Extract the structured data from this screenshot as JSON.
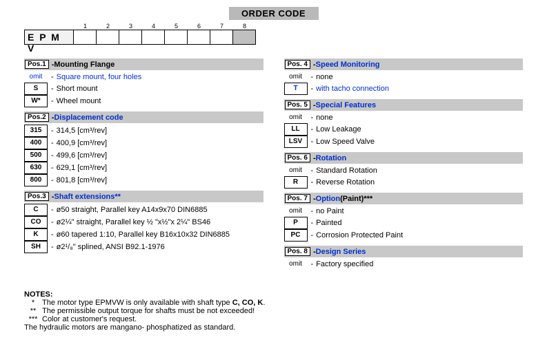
{
  "title": "ORDER CODE",
  "prefix": "E P M V",
  "gridNumbers": [
    "1",
    "2",
    "3",
    "4",
    "5",
    "6",
    "7",
    "8"
  ],
  "left": [
    {
      "pos": "Pos.1",
      "title": "Mounting Flange",
      "titleBlue": false,
      "rows": [
        {
          "code": "omit",
          "boxed": false,
          "omit": true,
          "blue": true,
          "desc": "Square mount, four holes"
        },
        {
          "code": "S",
          "boxed": true,
          "omit": false,
          "blue": false,
          "desc": "Short mount"
        },
        {
          "code": "W*",
          "boxed": true,
          "omit": false,
          "blue": false,
          "desc": "Wheel mount"
        }
      ]
    },
    {
      "pos": "Pos.2",
      "title": "Displacement code",
      "titleBlue": true,
      "rows": [
        {
          "code": "315",
          "boxed": true,
          "omit": false,
          "blue": false,
          "desc": "314,5 [cm³/rev]"
        },
        {
          "code": "400",
          "boxed": true,
          "omit": false,
          "blue": false,
          "desc": "400,9 [cm³/rev]"
        },
        {
          "code": "500",
          "boxed": true,
          "omit": false,
          "blue": false,
          "desc": "499,6 [cm³/rev]"
        },
        {
          "code": "630",
          "boxed": true,
          "omit": false,
          "blue": false,
          "desc": "629,1 [cm³/rev]"
        },
        {
          "code": "800",
          "boxed": true,
          "omit": false,
          "blue": false,
          "desc": "801,8 [cm³/rev]"
        }
      ]
    },
    {
      "pos": "Pos.3",
      "title": "Shaft extensions**",
      "titleBlue": true,
      "rows": [
        {
          "code": "C",
          "boxed": true,
          "omit": false,
          "blue": false,
          "desc": "ø50 straight, Parallel key A14x9x70 DIN6885"
        },
        {
          "code": "CO",
          "boxed": true,
          "omit": false,
          "blue": false,
          "desc": "ø2¼\" straight, Parallel key ½ \"x½\"x 2¼\" BS46"
        },
        {
          "code": "K",
          "boxed": true,
          "omit": false,
          "blue": false,
          "desc": "ø60 tapered 1:10, Parallel key B16x10x32 DIN6885"
        },
        {
          "code": "SH",
          "boxed": true,
          "omit": false,
          "blue": false,
          "desc": "ø2¹/₈\"  splined, ANSI B92.1-1976"
        }
      ]
    }
  ],
  "right": [
    {
      "pos": "Pos. 4",
      "title": "Speed Monitoring",
      "titleBlue": true,
      "rows": [
        {
          "code": "omit",
          "boxed": false,
          "omit": true,
          "blue": false,
          "desc": "none"
        },
        {
          "code": "T",
          "boxed": true,
          "omit": false,
          "blue": true,
          "desc": "with tacho connection"
        }
      ]
    },
    {
      "pos": "Pos. 5",
      "title": "Special Features",
      "titleBlue": true,
      "rows": [
        {
          "code": "omit",
          "boxed": false,
          "omit": true,
          "blue": false,
          "desc": "none"
        },
        {
          "code": "LL",
          "boxed": true,
          "omit": false,
          "blue": false,
          "desc": "Low Leakage"
        },
        {
          "code": "LSV",
          "boxed": true,
          "omit": false,
          "blue": false,
          "desc": "Low Speed Valve"
        }
      ]
    },
    {
      "pos": "Pos. 6",
      "title": "Rotation",
      "titleBlue": true,
      "rows": [
        {
          "code": "omit",
          "boxed": false,
          "omit": true,
          "blue": false,
          "desc": "Standard Rotation"
        },
        {
          "code": "R",
          "boxed": true,
          "omit": false,
          "blue": false,
          "desc": "Reverse Rotation"
        }
      ]
    },
    {
      "pos": "Pos. 7",
      "title": "Option",
      "suffix": " (Paint)***",
      "titleBlue": true,
      "rows": [
        {
          "code": "omit",
          "boxed": false,
          "omit": true,
          "blue": false,
          "desc": "no Paint"
        },
        {
          "code": "P",
          "boxed": true,
          "omit": false,
          "blue": false,
          "desc": "Painted"
        },
        {
          "code": "PC",
          "boxed": true,
          "omit": false,
          "blue": false,
          "desc": "Corrosion Protected Paint"
        }
      ]
    },
    {
      "pos": "Pos. 8",
      "title": "Design Series",
      "titleBlue": true,
      "rows": [
        {
          "code": "omit",
          "boxed": false,
          "omit": true,
          "blue": false,
          "desc": "Factory specified"
        }
      ]
    }
  ],
  "notes": {
    "heading": "NOTES:",
    "lines": [
      {
        "ast": "*",
        "text": "The motor type EPMVW is only available with shaft type ",
        "bold": "C, CO,  K",
        "after": "."
      },
      {
        "ast": "**",
        "text": "The permissible output torque for shafts must be not exceeded!"
      },
      {
        "ast": "***",
        "text": "Color at customer's request."
      }
    ],
    "footer": "The hydraulic motors are mangano- phosphatized as standard."
  }
}
